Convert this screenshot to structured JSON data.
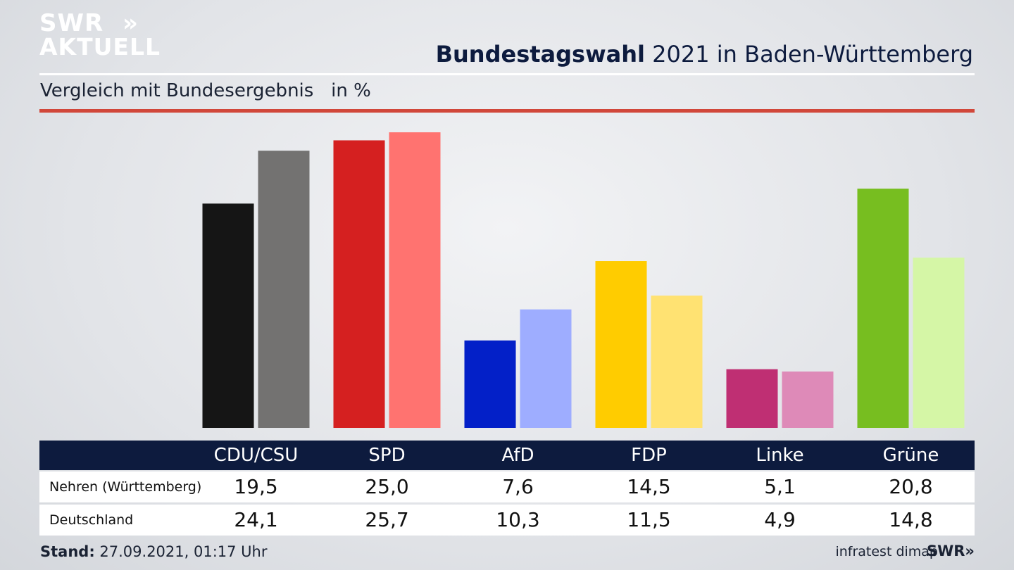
{
  "brand": {
    "logo_line1": "SWR",
    "logo_line2": "AKTUELL",
    "chevrons": "»",
    "small_logo": "SWR»"
  },
  "header": {
    "title_bold": "Bundestagswahl",
    "title_rest": " 2021 in Baden-Württemberg",
    "subtitle": "Vergleich mit Bundesergebnis   in %"
  },
  "footer": {
    "stand_label": "Stand:",
    "stand_value": " 27.09.2021, 01:17 Uhr",
    "source": "infratest dimap"
  },
  "table": {
    "rows": [
      {
        "label": "Nehren (Württemberg)",
        "values": [
          "19,5",
          "25,0",
          "7,6",
          "14,5",
          "5,1",
          "20,8"
        ]
      },
      {
        "label": "Deutschland",
        "values": [
          "24,1",
          "25,7",
          "10,3",
          "11,5",
          "4,9",
          "14,8"
        ]
      }
    ]
  },
  "chart_data": {
    "type": "bar",
    "categories": [
      "CDU/CSU",
      "SPD",
      "AfD",
      "FDP",
      "Linke",
      "Grüne"
    ],
    "series": [
      {
        "name": "Nehren (Württemberg)",
        "values": [
          19.5,
          25.0,
          7.6,
          14.5,
          5.1,
          20.8
        ],
        "colors": [
          "#151515",
          "#d52020",
          "#0320c8",
          "#ffcc00",
          "#bf2f73",
          "#77be20"
        ]
      },
      {
        "name": "Deutschland",
        "values": [
          24.1,
          25.7,
          10.3,
          11.5,
          4.9,
          14.8
        ],
        "colors": [
          "#737271",
          "#ff7370",
          "#9eadff",
          "#ffe272",
          "#de8ab8",
          "#d5f6a6"
        ]
      }
    ],
    "ylim": [
      0,
      25.7
    ],
    "grid": false,
    "legend": "table-below"
  }
}
